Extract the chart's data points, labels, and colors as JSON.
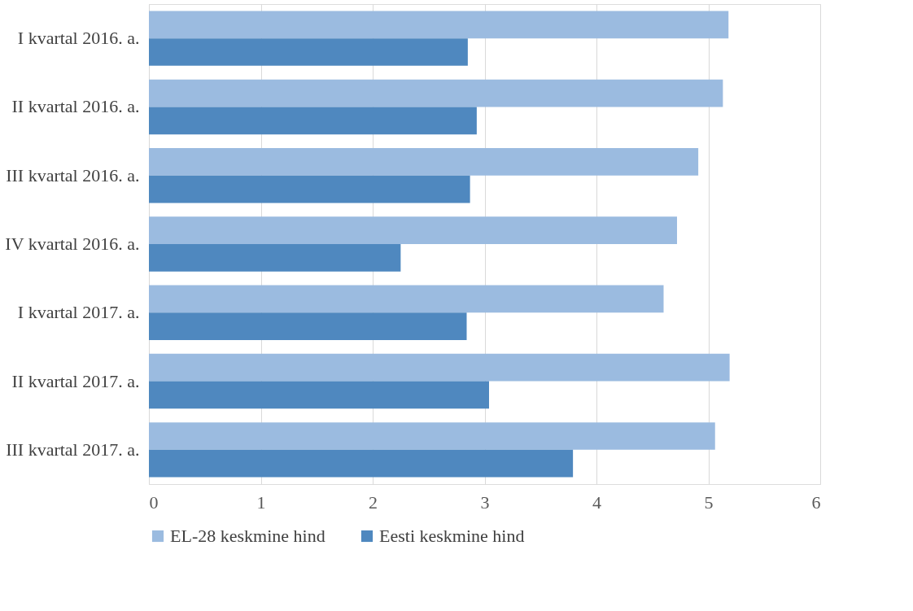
{
  "chart_data": {
    "type": "bar",
    "orientation": "horizontal",
    "categories": [
      "I kvartal 2016. a.",
      "II kvartal 2016. a.",
      "III kvartal 2016. a.",
      "IV kvartal 2016. a.",
      "I kvartal 2017. a.",
      "II kvartal 2017. a.",
      "III kvartal 2017. a."
    ],
    "series": [
      {
        "name": "EL-28 keskmine hind",
        "color": "#9bbbe0",
        "values": [
          5.18,
          5.13,
          4.91,
          4.72,
          4.6,
          5.19,
          5.06
        ]
      },
      {
        "name": "Eesti keskmine hind",
        "color": "#4f88bf",
        "values": [
          2.85,
          2.93,
          2.87,
          2.25,
          2.84,
          3.04,
          3.79
        ]
      }
    ],
    "xlim": [
      0,
      6
    ],
    "xticks": [
      0,
      1,
      2,
      3,
      4,
      5,
      6
    ],
    "grid": "x",
    "legend": "bottom"
  }
}
